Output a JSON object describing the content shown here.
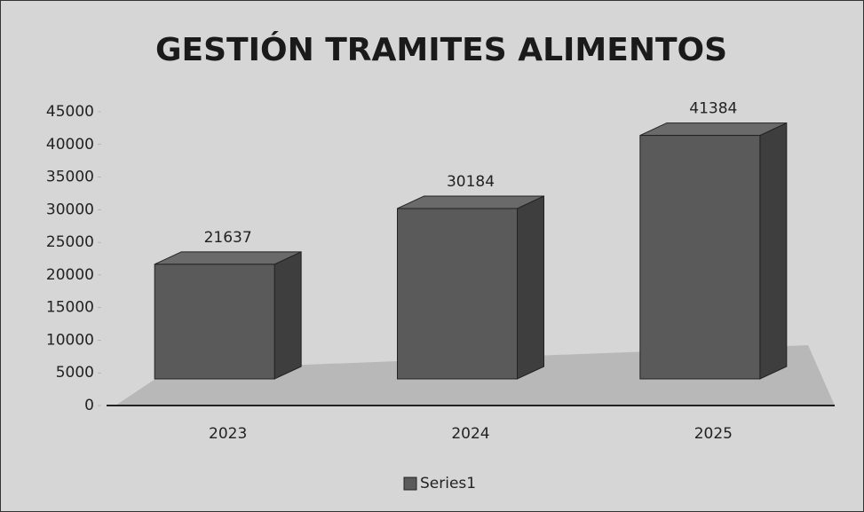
{
  "chart_data": {
    "type": "bar3d",
    "title": "GESTIÓN TRAMITES ALIMENTOS",
    "categories": [
      "2023",
      "2024",
      "2025"
    ],
    "series": [
      {
        "name": "Series1",
        "color": "#5a5a5a",
        "values": [
          21637,
          30184,
          41384
        ]
      }
    ],
    "ylim": [
      0,
      45000
    ],
    "yticks": [
      0,
      5000,
      10000,
      15000,
      20000,
      25000,
      30000,
      35000,
      40000,
      45000
    ],
    "legend": "bottom"
  }
}
